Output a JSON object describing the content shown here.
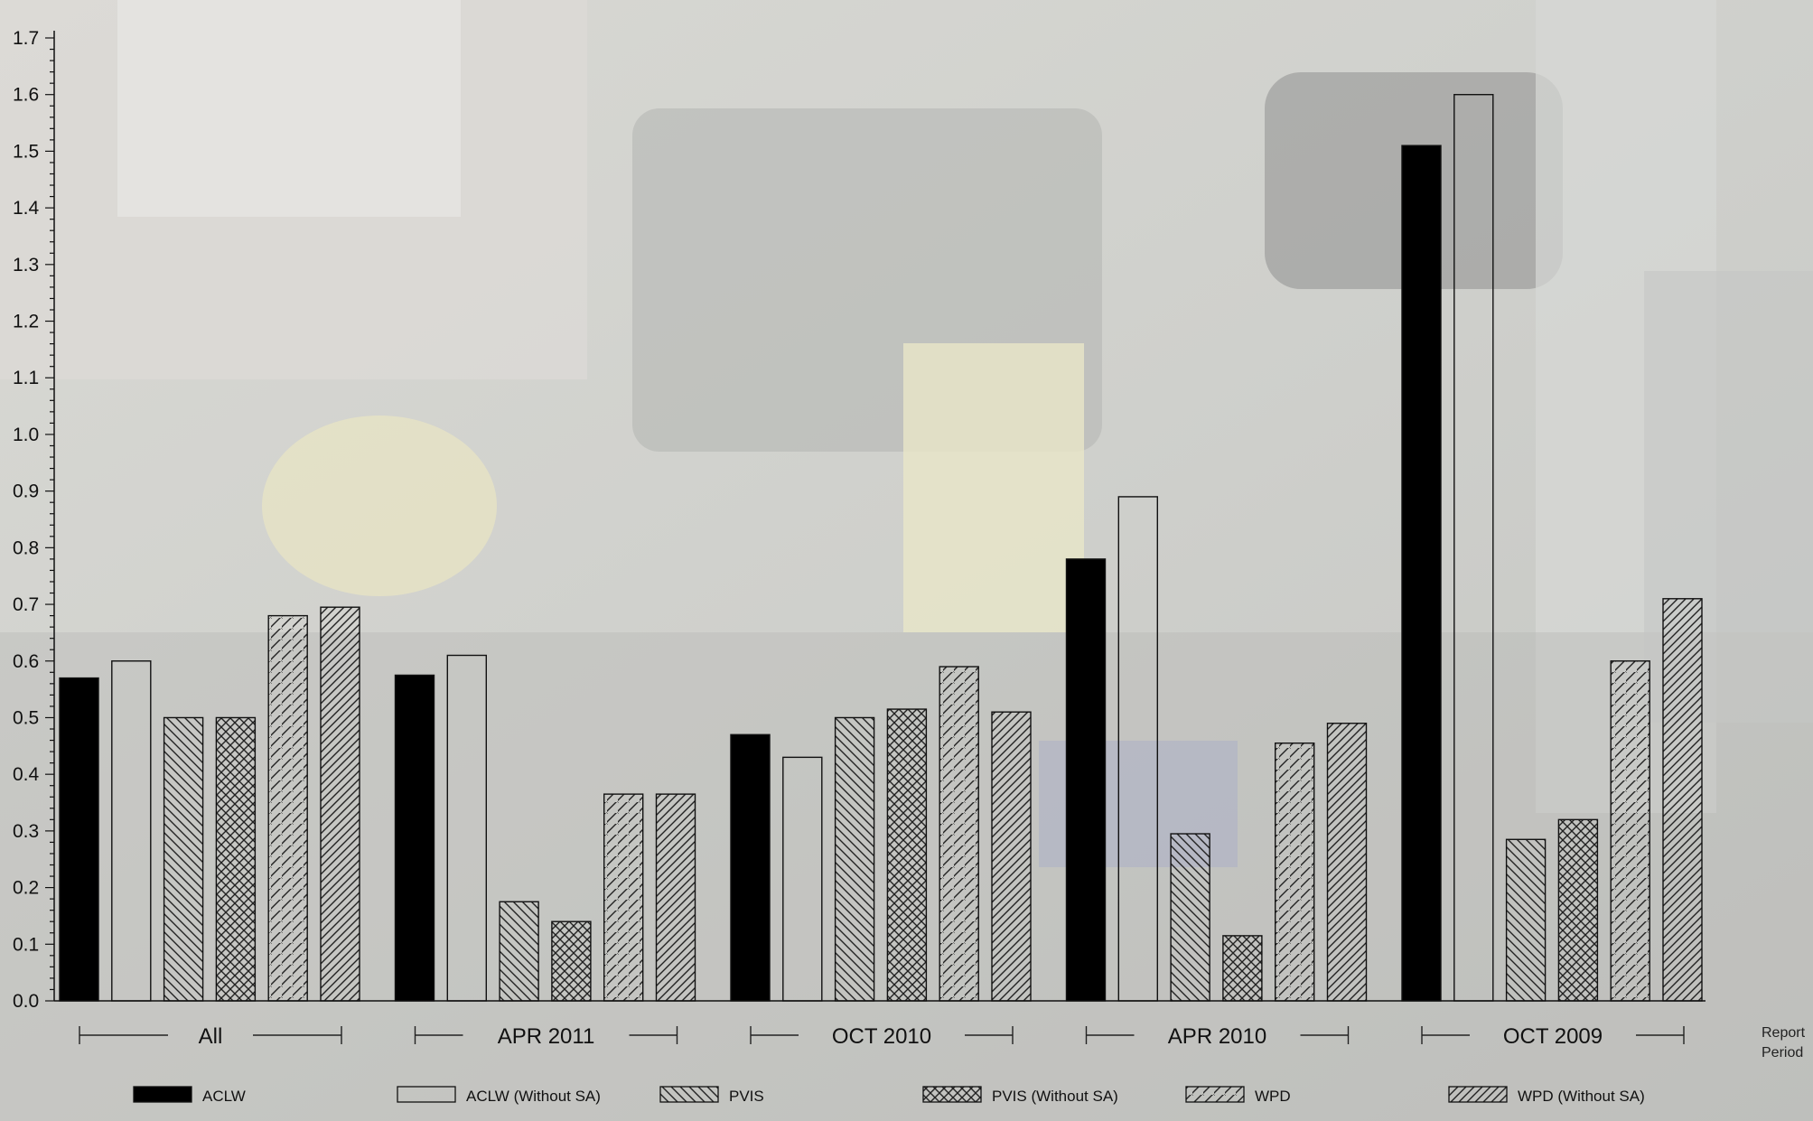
{
  "chart_data": {
    "type": "bar",
    "xlabel": "Report Period",
    "ylabel": "",
    "ylim": [
      0,
      1.7
    ],
    "yticks": [
      "0.0",
      "0.1",
      "0.2",
      "0.3",
      "0.4",
      "0.5",
      "0.6",
      "0.7",
      "0.8",
      "0.9",
      "1.0",
      "1.1",
      "1.2",
      "1.3",
      "1.4",
      "1.5",
      "1.6",
      "1.7"
    ],
    "categories": [
      "All",
      "APR 2011",
      "OCT 2010",
      "APR 2010",
      "OCT 2009"
    ],
    "series": [
      {
        "name": "ACLW",
        "pattern": "solid",
        "values": [
          0.57,
          0.575,
          0.47,
          0.78,
          1.51
        ]
      },
      {
        "name": "ACLW (Without SA)",
        "pattern": "empty",
        "values": [
          0.6,
          0.61,
          0.43,
          0.89,
          1.6
        ]
      },
      {
        "name": "PVIS",
        "pattern": "backslash",
        "values": [
          0.5,
          0.175,
          0.5,
          0.295,
          0.285
        ]
      },
      {
        "name": "PVIS (Without SA)",
        "pattern": "crosshatch",
        "values": [
          0.5,
          0.14,
          0.515,
          0.115,
          0.32
        ]
      },
      {
        "name": "WPD",
        "pattern": "slash",
        "values": [
          0.68,
          0.365,
          0.59,
          0.455,
          0.6
        ]
      },
      {
        "name": "WPD (Without SA)",
        "pattern": "dense-slash",
        "values": [
          0.695,
          0.365,
          0.51,
          0.49,
          0.71
        ]
      }
    ],
    "legend_position": "bottom",
    "grid": false
  },
  "colors": {
    "bar_stroke": "#111111",
    "solid_fill": "#000000",
    "background_photo": "faded engine test cell"
  }
}
